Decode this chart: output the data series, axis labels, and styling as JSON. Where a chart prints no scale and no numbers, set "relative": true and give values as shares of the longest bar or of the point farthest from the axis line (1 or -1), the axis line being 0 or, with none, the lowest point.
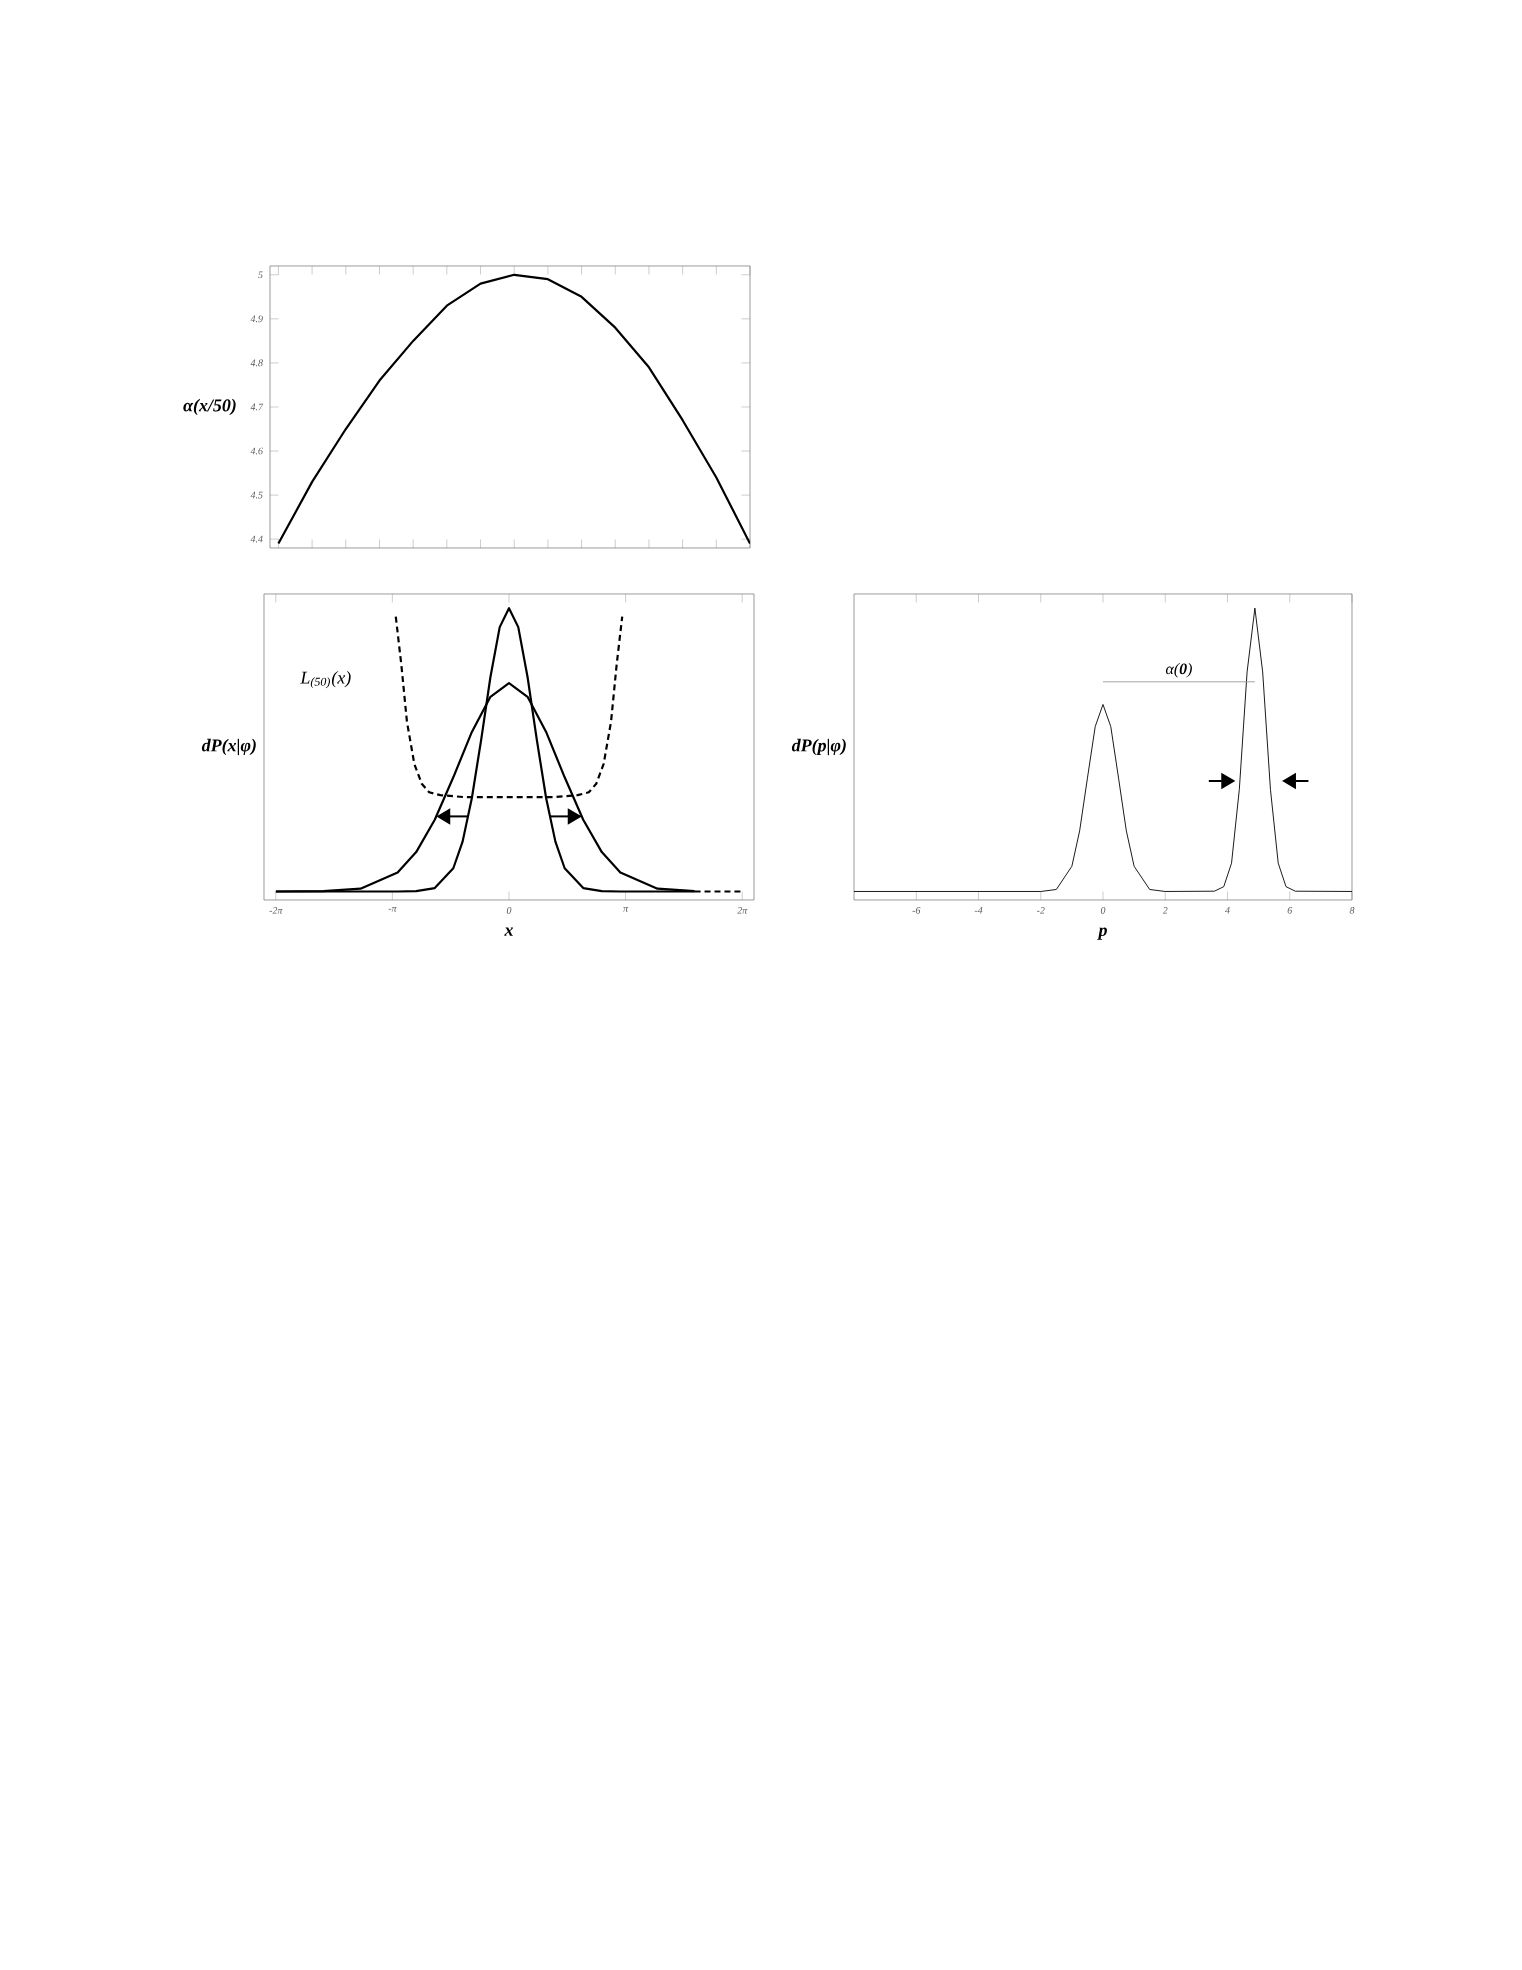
{
  "chart_data": [
    {
      "type": "line",
      "ylabel": "α(x/50)",
      "categories": [
        null,
        null,
        null,
        null,
        null,
        null,
        null,
        null,
        null,
        null,
        null,
        null,
        null,
        null,
        null
      ],
      "series": [
        {
          "color": "#000000",
          "values": [
            4.39,
            4.53,
            4.65,
            4.76,
            4.85,
            4.93,
            4.98,
            5.0,
            4.99,
            4.95,
            4.88,
            4.79,
            4.67,
            4.54,
            4.39
          ]
        }
      ],
      "ylim": [
        4.38,
        5.02
      ],
      "yticks": [
        4.4,
        4.5,
        4.6,
        4.7,
        4.8,
        4.9,
        5
      ],
      "tick_labels": "y"
    },
    {
      "type": "line",
      "xlabel": "x",
      "ylabel": "dP(x|φ)",
      "relative": true,
      "xlim": [
        -6.6,
        6.6
      ],
      "xticks": [
        {
          "value": -6.2832,
          "label": "-2π"
        },
        {
          "value": -3.1416,
          "label": "-π"
        },
        0,
        {
          "value": 3.1416,
          "label": "π"
        },
        {
          "value": 6.2832,
          "label": "2π"
        }
      ],
      "series": [
        {
          "color": "#000000",
          "x": [
            -6.28,
            -3,
            -2.5,
            -2,
            -1.5,
            -1.25,
            -1,
            -0.75,
            -0.5,
            -0.25,
            0,
            0.25,
            0.5,
            0.75,
            1,
            1.25,
            1.5,
            2,
            2.5,
            3,
            5
          ],
          "values": [
            0,
            0,
            0.001,
            0.012,
            0.082,
            0.176,
            0.33,
            0.535,
            0.757,
            0.933,
            1,
            0.933,
            0.757,
            0.535,
            0.33,
            0.176,
            0.082,
            0.012,
            0.001,
            0,
            0
          ]
        },
        {
          "color": "#000000",
          "x": [
            -6.28,
            -5,
            -4,
            -3,
            -2.5,
            -2,
            -1.5,
            -1,
            -0.5,
            0,
            0.5,
            1,
            1.5,
            2,
            2.5,
            3,
            4,
            5
          ],
          "values": [
            0,
            0.001,
            0.01,
            0.067,
            0.139,
            0.253,
            0.403,
            0.563,
            0.687,
            0.735,
            0.687,
            0.563,
            0.403,
            0.253,
            0.139,
            0.067,
            0.01,
            0.001
          ]
        },
        {
          "name": "L$_{(50)}$(x)",
          "color": "#000000",
          "line_style": "dashed",
          "x": [
            -3.05,
            -2.9,
            -2.75,
            -2.55,
            -2.35,
            -2.15,
            -1.85,
            -1.2,
            0,
            1.2,
            1.85,
            2.15,
            2.35,
            2.55,
            2.75,
            2.9,
            3.05,
            4,
            5,
            6.28
          ],
          "values": [
            0.97,
            0.8,
            0.6,
            0.45,
            0.38,
            0.35,
            0.34,
            0.333,
            0.333,
            0.333,
            0.34,
            0.35,
            0.38,
            0.45,
            0.6,
            0.8,
            0.97,
            null,
            0,
            0
          ]
        }
      ]
    },
    {
      "type": "line",
      "xlabel": "p",
      "ylabel": "dP(p|φ)",
      "relative": true,
      "xlim": [
        -8,
        8
      ],
      "xticks": [
        -6,
        -4,
        -2,
        0,
        2,
        4,
        6,
        8
      ],
      "series": [
        {
          "color": "#000000",
          "x": [
            -8,
            -2,
            -1.5,
            -1,
            -0.75,
            -0.5,
            -0.25,
            0,
            0.25,
            0.5,
            0.75,
            1,
            1.5,
            2,
            3.58,
            3.88,
            4.13,
            4.38,
            4.63,
            4.88,
            5.13,
            5.38,
            5.63,
            5.88,
            6.18,
            8
          ],
          "values": [
            0,
            0,
            0.007,
            0.089,
            0.214,
            0.4,
            0.582,
            0.66,
            0.582,
            0.4,
            0.214,
            0.089,
            0.007,
            0,
            0.001,
            0.017,
            0.1,
            0.36,
            0.775,
            1,
            0.775,
            0.36,
            0.1,
            0.017,
            0.001,
            0
          ]
        },
        {
          "color": "#999999",
          "x": [
            0,
            4.88
          ],
          "values": [
            0.74,
            0.74
          ]
        }
      ],
      "annotations": [
        {
          "text": "α(**0**)",
          "x": 2.44,
          "y": 0.74
        }
      ]
    }
  ]
}
